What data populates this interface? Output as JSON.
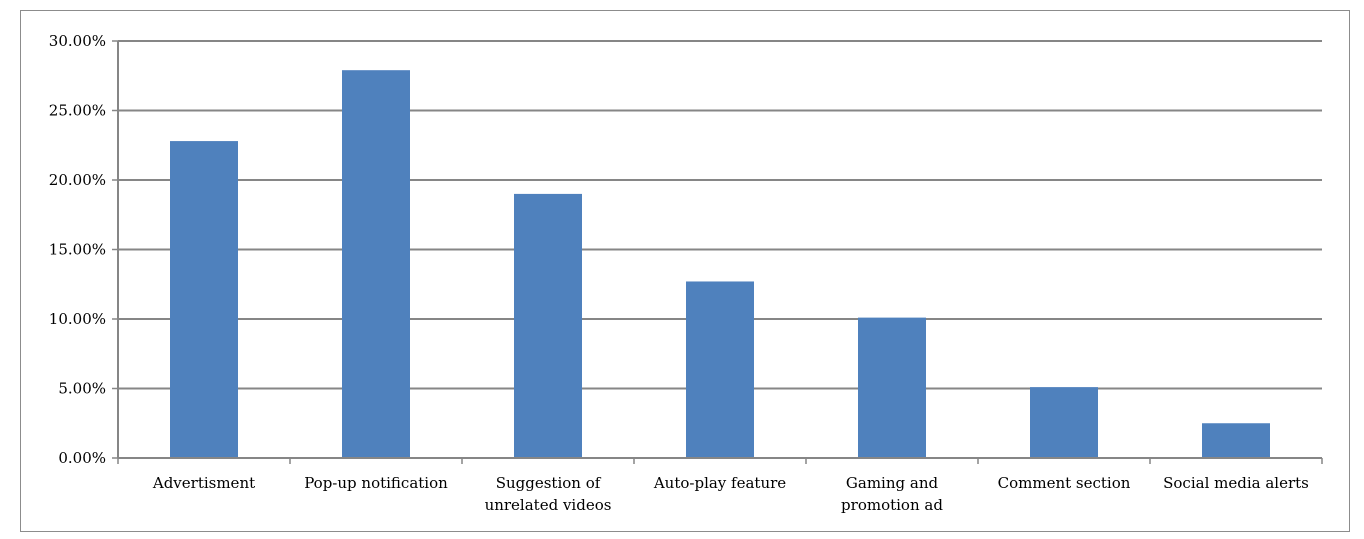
{
  "chart_data": {
    "type": "bar",
    "title": "",
    "xlabel": "",
    "ylabel": "",
    "categories": [
      [
        "Advertisment"
      ],
      [
        "Pop-up notification"
      ],
      [
        "Suggestion of",
        "unrelated videos"
      ],
      [
        "Auto-play feature"
      ],
      [
        "Gaming and",
        "promotion ad"
      ],
      [
        "Comment section"
      ],
      [
        "Social media alerts"
      ]
    ],
    "values": [
      22.8,
      27.9,
      19.0,
      12.7,
      10.1,
      5.1,
      2.5
    ],
    "ylim": [
      0,
      30
    ],
    "y_ticks": [
      "0.00%",
      "5.00%",
      "10.00%",
      "15.00%",
      "20.00%",
      "25.00%",
      "30.00%"
    ],
    "y_tick_values": [
      0,
      5,
      10,
      15,
      20,
      25,
      30
    ],
    "grid": true,
    "legend": "none",
    "bar_color": "#4f81bd",
    "grid_color": "#868686"
  }
}
